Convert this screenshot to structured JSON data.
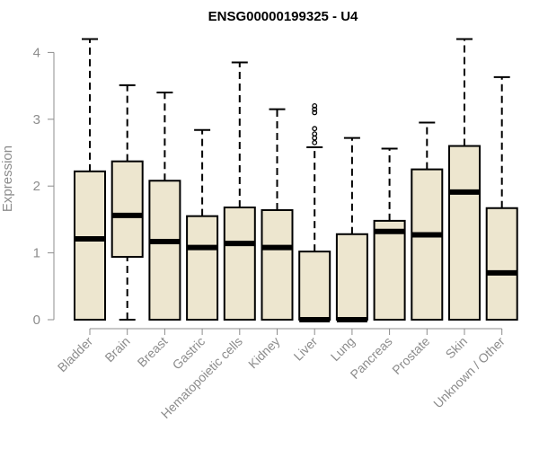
{
  "chart_data": {
    "type": "boxplot",
    "title": "ENSG00000199325 - U4",
    "ylabel": "Expression",
    "xlabel": "",
    "ylim": [
      0,
      4.3
    ],
    "yticks": [
      0,
      1,
      2,
      3,
      4
    ],
    "box_fill": "#ede6cf",
    "box_stroke": "#000000",
    "label_color": "#8c8c8c",
    "categories": [
      "Bladder",
      "Brain",
      "Breast",
      "Gastric",
      "Hematopoietic cells",
      "Kidney",
      "Liver",
      "Lung",
      "Pancreas",
      "Prostate",
      "Skin",
      "Unknown / Other"
    ],
    "boxes": [
      {
        "label": "Bladder",
        "whisker_low": 0,
        "q1": 0,
        "median": 1.21,
        "q3": 2.22,
        "whisker_high": 4.2,
        "outliers": []
      },
      {
        "label": "Brain",
        "whisker_low": 0,
        "q1": 0.94,
        "median": 1.56,
        "q3": 2.37,
        "whisker_high": 3.51,
        "outliers": []
      },
      {
        "label": "Breast",
        "whisker_low": 0,
        "q1": 0,
        "median": 1.17,
        "q3": 2.08,
        "whisker_high": 3.4,
        "outliers": []
      },
      {
        "label": "Gastric",
        "whisker_low": 0,
        "q1": 0,
        "median": 1.08,
        "q3": 1.55,
        "whisker_high": 2.84,
        "outliers": []
      },
      {
        "label": "Hematopoietic cells",
        "whisker_low": 0,
        "q1": 0,
        "median": 1.14,
        "q3": 1.68,
        "whisker_high": 3.85,
        "outliers": []
      },
      {
        "label": "Kidney",
        "whisker_low": 0,
        "q1": 0,
        "median": 1.08,
        "q3": 1.64,
        "whisker_high": 3.15,
        "outliers": []
      },
      {
        "label": "Liver",
        "whisker_low": 0,
        "q1": 0,
        "median": 0,
        "q3": 1.02,
        "whisker_high": 2.58,
        "outliers": [
          2.65,
          2.72,
          2.78,
          2.86,
          3.1,
          3.15,
          3.2
        ]
      },
      {
        "label": "Lung",
        "whisker_low": 0,
        "q1": 0,
        "median": 0,
        "q3": 1.28,
        "whisker_high": 2.72,
        "outliers": []
      },
      {
        "label": "Pancreas",
        "whisker_low": 0,
        "q1": 0,
        "median": 1.32,
        "q3": 1.48,
        "whisker_high": 2.56,
        "outliers": []
      },
      {
        "label": "Prostate",
        "whisker_low": 0,
        "q1": 0,
        "median": 1.27,
        "q3": 2.25,
        "whisker_high": 2.95,
        "outliers": []
      },
      {
        "label": "Skin",
        "whisker_low": 0,
        "q1": 0,
        "median": 1.91,
        "q3": 2.6,
        "whisker_high": 4.2,
        "outliers": []
      },
      {
        "label": "Unknown / Other",
        "whisker_low": 0,
        "q1": 0,
        "median": 0.7,
        "q3": 1.67,
        "whisker_high": 3.63,
        "outliers": []
      }
    ]
  }
}
